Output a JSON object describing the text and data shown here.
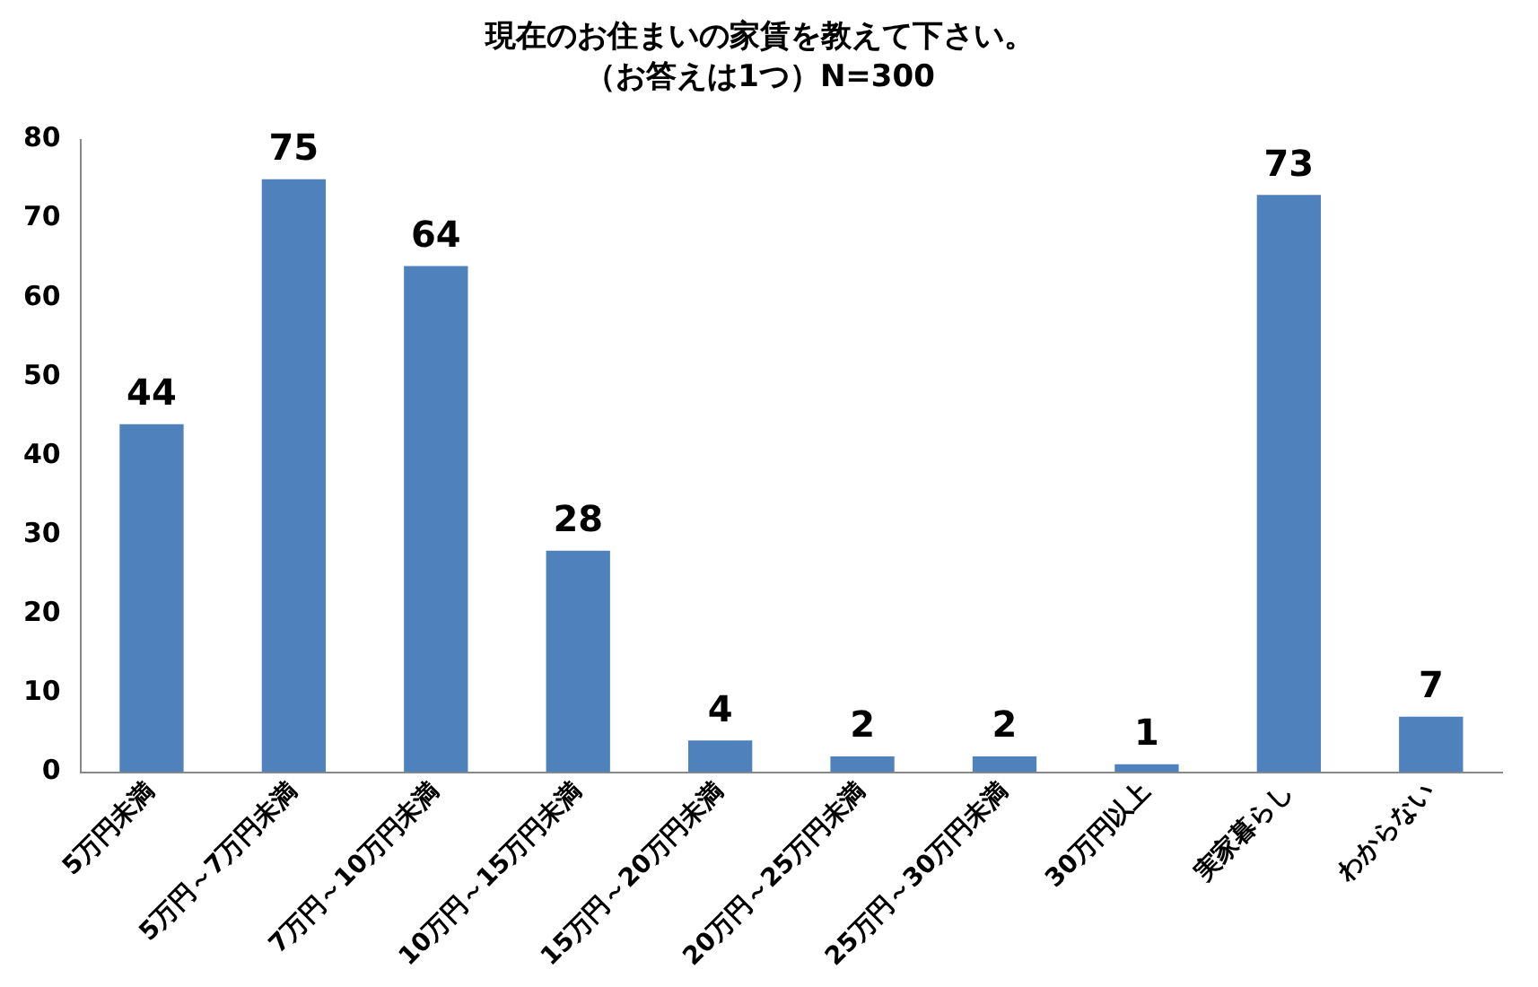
{
  "chart_data": {
    "type": "bar",
    "title": "現在のお住まいの家賃を教えて下さい。",
    "subtitle": "（お答えは1つ）N=300",
    "categories": [
      "5万円未満",
      "5万円～7万円未満",
      "7万円～10万円未満",
      "10万円～15万円未満",
      "15万円～20万円未満",
      "20万円～25万円未満",
      "25万円～30万円未満",
      "30万円以上",
      "実家暮らし",
      "わからない"
    ],
    "values": [
      44,
      75,
      64,
      28,
      4,
      2,
      2,
      1,
      73,
      7
    ],
    "color": "#4f81bd",
    "ylim": [
      0,
      80
    ],
    "yticks": [
      0,
      10,
      20,
      30,
      40,
      50,
      60,
      70,
      80
    ],
    "grid": false,
    "legend": false,
    "data_labels": true
  }
}
